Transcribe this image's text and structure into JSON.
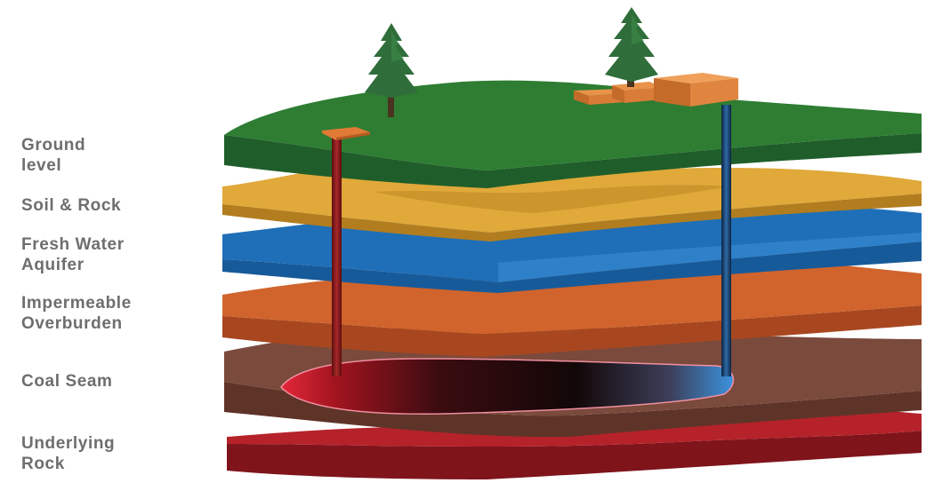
{
  "layers": [
    {
      "id": "ground",
      "label_lines": [
        "Ground",
        "level"
      ],
      "color": "#2e7d32"
    },
    {
      "id": "soil",
      "label_lines": [
        "Soil & Rock"
      ],
      "color": "#e0a93a"
    },
    {
      "id": "aquifer",
      "label_lines": [
        "Fresh Water",
        "Aquifer"
      ],
      "color": "#1f6fb8"
    },
    {
      "id": "overburden",
      "label_lines": [
        "Impermeable",
        "Overburden"
      ],
      "color": "#d0642c"
    },
    {
      "id": "coal",
      "label_lines": [
        "Coal Seam"
      ],
      "color": "#7a4a3c"
    },
    {
      "id": "underlying",
      "label_lines": [
        "Underlying",
        "Rock"
      ],
      "color": "#b5222a"
    }
  ],
  "label_color": "#6e6e6e",
  "icons": {
    "trees": "pine-tree-icon",
    "injection_well": "injection-wellhead-icon",
    "production_plant": "production-facility-icon"
  },
  "colors": {
    "injection_well": "#8b1e1e",
    "production_well": "#1b3f66",
    "wellhead": "#e07a35",
    "tree": "#2f6e3a"
  }
}
